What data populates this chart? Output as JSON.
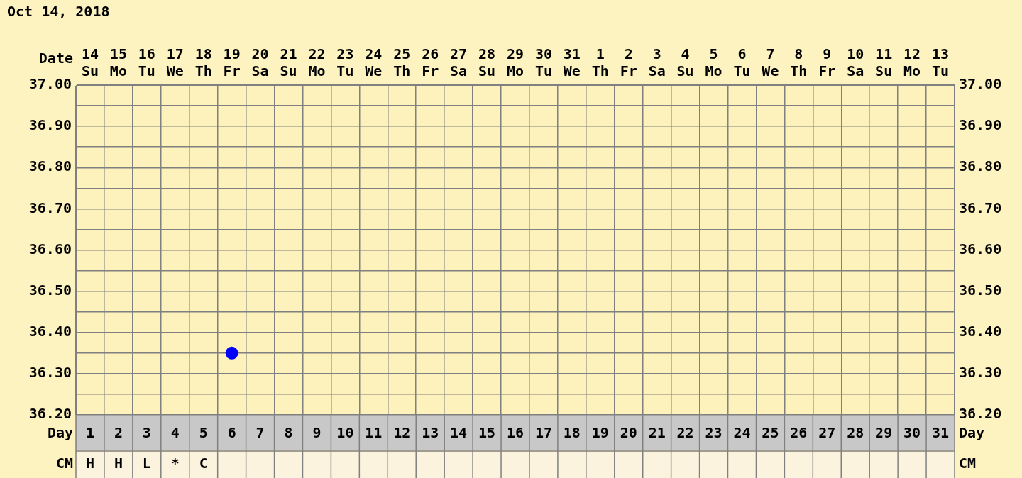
{
  "chart_data": {
    "type": "line",
    "title": "Oct 14, 2018",
    "xlabel": "Date",
    "x2label": "Day",
    "categories": [
      "14 Su",
      "15 Mo",
      "16 Tu",
      "17 We",
      "18 Th",
      "19 Fr",
      "20 Sa",
      "21 Su",
      "22 Mo",
      "23 Tu",
      "24 We",
      "25 Th",
      "26 Fr",
      "27 Sa",
      "28 Su",
      "29 Mo",
      "30 Tu",
      "31 We",
      "1 Th",
      "2 Fr",
      "3 Sa",
      "4 Su",
      "5 Mo",
      "6 Tu",
      "7 We",
      "8 Th",
      "9 Fr",
      "10 Sa",
      "11 Su",
      "12 Mo",
      "13 Tu"
    ],
    "x2lim": [
      0.5,
      31.5
    ],
    "x2ticks": [
      1,
      2,
      3,
      4,
      5,
      6,
      7,
      8,
      9,
      10,
      11,
      12,
      13,
      14,
      15,
      16,
      17,
      18,
      19,
      20,
      21,
      22,
      23,
      24,
      25,
      26,
      27,
      28,
      29,
      30,
      31
    ],
    "series": [
      {
        "color": "#0000ff",
        "values": [
          null,
          null,
          null,
          null,
          null,
          36.35,
          null,
          null,
          null,
          null,
          null,
          null,
          null,
          null,
          null,
          null,
          null,
          null,
          null,
          null,
          null,
          null,
          null,
          null,
          null,
          null,
          null,
          null,
          null,
          null,
          null
        ]
      }
    ],
    "ylim": [
      36.2,
      37.0
    ],
    "yticks": [
      {
        "value": 36.2,
        "label": "36.20"
      },
      {
        "value": 36.25,
        "label": null
      },
      {
        "value": 36.3,
        "label": "36.30"
      },
      {
        "value": 36.35,
        "label": null
      },
      {
        "value": 36.4,
        "label": "36.40"
      },
      {
        "value": 36.45,
        "label": null
      },
      {
        "value": 36.5,
        "label": "36.50"
      },
      {
        "value": 36.55,
        "label": null
      },
      {
        "value": 36.6,
        "label": "36.60"
      },
      {
        "value": 36.65,
        "label": null
      },
      {
        "value": 36.7,
        "label": "36.70"
      },
      {
        "value": 36.75,
        "label": null
      },
      {
        "value": 36.8,
        "label": "36.80"
      },
      {
        "value": 36.85,
        "label": null
      },
      {
        "value": 36.9,
        "label": "36.90"
      },
      {
        "value": 36.95,
        "label": null
      },
      {
        "value": 37.0,
        "label": "37.00"
      }
    ],
    "y2lim": [
      36.2,
      37.0
    ],
    "y2ticks": [
      {
        "value": 36.2,
        "label": "36.20"
      },
      {
        "value": 36.25,
        "label": null
      },
      {
        "value": 36.3,
        "label": "36.30"
      },
      {
        "value": 36.35,
        "label": null
      },
      {
        "value": 36.4,
        "label": "36.40"
      },
      {
        "value": 36.45,
        "label": null
      },
      {
        "value": 36.5,
        "label": "36.50"
      },
      {
        "value": 36.55,
        "label": null
      },
      {
        "value": 36.6,
        "label": "36.60"
      },
      {
        "value": 36.65,
        "label": null
      },
      {
        "value": 36.7,
        "label": "36.70"
      },
      {
        "value": 36.75,
        "label": null
      },
      {
        "value": 36.8,
        "label": "36.80"
      },
      {
        "value": 36.85,
        "label": null
      },
      {
        "value": 36.9,
        "label": "36.90"
      },
      {
        "value": 36.95,
        "label": null
      },
      {
        "value": 37.0,
        "label": "37.00"
      }
    ],
    "grid": true,
    "marker": "circle",
    "annotations": [
      "CM",
      "H",
      "H",
      "L",
      "*",
      "C"
    ]
  }
}
